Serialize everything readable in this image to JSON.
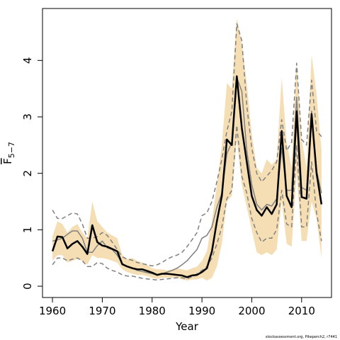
{
  "chart_data": {
    "type": "line",
    "xlabel": "Year",
    "ylabel": "F",
    "ylabel_subscript": "5−7",
    "xlim": [
      1958,
      2016
    ],
    "ylim": [
      -0.2,
      4.92
    ],
    "xticks": [
      1960,
      1970,
      1980,
      1990,
      2000,
      2010
    ],
    "yticks": [
      0,
      1,
      2,
      3,
      4
    ],
    "grid": false,
    "credit": "stockassessment.org, Pikeperch2, r7441",
    "colors": {
      "band": "#f5deb3",
      "estimate": "#000000",
      "bounds": "#808080"
    },
    "x": [
      1960,
      1961,
      1962,
      1963,
      1964,
      1965,
      1966,
      1967,
      1968,
      1969,
      1970,
      1971,
      1972,
      1973,
      1974,
      1975,
      1976,
      1977,
      1978,
      1979,
      1980,
      1981,
      1982,
      1983,
      1984,
      1985,
      1986,
      1987,
      1988,
      1989,
      1990,
      1991,
      1992,
      1993,
      1994,
      1995,
      1996,
      1997,
      1998,
      1999,
      2000,
      2001,
      2002,
      2003,
      2004,
      2005,
      2006,
      2007,
      2008,
      2009,
      2010,
      2011,
      2012,
      2013,
      2014
    ],
    "series": [
      {
        "role": "band_lower",
        "values": [
          0.45,
          0.55,
          0.55,
          0.42,
          0.45,
          0.48,
          0.45,
          0.38,
          0.55,
          0.5,
          0.5,
          0.48,
          0.45,
          0.42,
          0.3,
          0.25,
          0.22,
          0.2,
          0.2,
          0.18,
          0.15,
          0.13,
          0.15,
          0.15,
          0.15,
          0.15,
          0.12,
          0.1,
          0.12,
          0.12,
          0.15,
          0.1,
          0.15,
          0.35,
          0.75,
          1.5,
          1.6,
          2.6,
          1.8,
          1.4,
          1.0,
          0.6,
          0.55,
          0.6,
          0.55,
          0.65,
          1.5,
          0.75,
          0.7,
          2.0,
          0.8,
          0.8,
          1.5,
          1.2,
          0.5
        ]
      },
      {
        "role": "band_upper",
        "values": [
          0.88,
          1.15,
          1.1,
          0.95,
          1.05,
          1.1,
          0.95,
          0.85,
          1.5,
          1.15,
          1.05,
          0.95,
          0.9,
          0.85,
          0.55,
          0.48,
          0.5,
          0.45,
          0.42,
          0.38,
          0.32,
          0.3,
          0.3,
          0.28,
          0.3,
          0.32,
          0.3,
          0.28,
          0.32,
          0.35,
          0.45,
          0.62,
          1.15,
          1.8,
          2.5,
          3.6,
          3.5,
          4.75,
          4.3,
          3.6,
          2.7,
          2.1,
          2.0,
          2.25,
          2.15,
          2.25,
          3.7,
          2.55,
          2.1,
          4.0,
          2.6,
          2.1,
          4.1,
          3.4,
          2.4
        ]
      },
      {
        "name": "",
        "role": "estimate",
        "values": [
          0.62,
          0.88,
          0.87,
          0.67,
          0.75,
          0.8,
          0.7,
          0.57,
          1.08,
          0.78,
          0.72,
          0.7,
          0.66,
          0.62,
          0.39,
          0.35,
          0.32,
          0.3,
          0.3,
          0.27,
          0.24,
          0.2,
          0.22,
          0.22,
          0.21,
          0.2,
          0.19,
          0.16,
          0.19,
          0.2,
          0.25,
          0.32,
          0.62,
          1.15,
          1.6,
          2.6,
          2.5,
          3.72,
          2.8,
          2.2,
          1.6,
          1.35,
          1.25,
          1.4,
          1.28,
          1.45,
          2.75,
          1.6,
          1.4,
          3.1,
          1.58,
          1.55,
          3.05,
          2.0,
          1.45
        ]
      },
      {
        "role": "ci_lower",
        "values": [
          0.38,
          0.5,
          0.5,
          0.45,
          0.48,
          0.5,
          0.45,
          0.35,
          0.35,
          0.42,
          0.4,
          0.32,
          0.28,
          0.25,
          0.2,
          0.18,
          0.18,
          0.16,
          0.14,
          0.13,
          0.12,
          0.11,
          0.12,
          0.13,
          0.14,
          0.15,
          0.15,
          0.13,
          0.17,
          0.22,
          0.28,
          0.35,
          0.5,
          0.75,
          1.05,
          1.55,
          1.7,
          2.85,
          1.95,
          1.65,
          1.2,
          0.95,
          0.78,
          0.85,
          0.85,
          1.0,
          1.7,
          1.1,
          1.05,
          2.5,
          1.05,
          1.05,
          2.2,
          1.3,
          0.8
        ]
      },
      {
        "role": "ci_upper",
        "values": [
          1.35,
          1.2,
          1.2,
          1.25,
          1.3,
          1.28,
          1.1,
          0.85,
          0.85,
          0.88,
          0.95,
          0.9,
          0.78,
          0.65,
          0.52,
          0.48,
          0.46,
          0.42,
          0.4,
          0.38,
          0.36,
          0.38,
          0.42,
          0.48,
          0.52,
          0.55,
          0.6,
          0.7,
          0.82,
          0.95,
          1.25,
          1.3,
          1.5,
          1.85,
          2.25,
          2.75,
          3.1,
          4.65,
          4.35,
          3.2,
          2.45,
          2.0,
          1.85,
          1.95,
          2.05,
          2.2,
          2.95,
          2.4,
          2.55,
          3.95,
          2.6,
          2.5,
          3.65,
          2.75,
          2.65
        ]
      },
      {
        "role": "median",
        "values": [
          0.8,
          0.82,
          0.85,
          0.92,
          0.98,
          0.98,
          0.85,
          0.6,
          0.6,
          0.72,
          0.8,
          0.68,
          0.65,
          0.55,
          0.4,
          0.35,
          0.32,
          0.28,
          0.26,
          0.24,
          0.22,
          0.2,
          0.22,
          0.25,
          0.28,
          0.32,
          0.38,
          0.45,
          0.55,
          0.65,
          0.85,
          0.9,
          1.05,
          1.4,
          1.65,
          2.35,
          2.55,
          3.7,
          3.45,
          2.4,
          1.8,
          1.45,
          1.35,
          1.45,
          1.42,
          1.55,
          2.45,
          1.7,
          1.7,
          3.35,
          1.75,
          1.7,
          3.1,
          2.05,
          1.65
        ]
      }
    ]
  }
}
